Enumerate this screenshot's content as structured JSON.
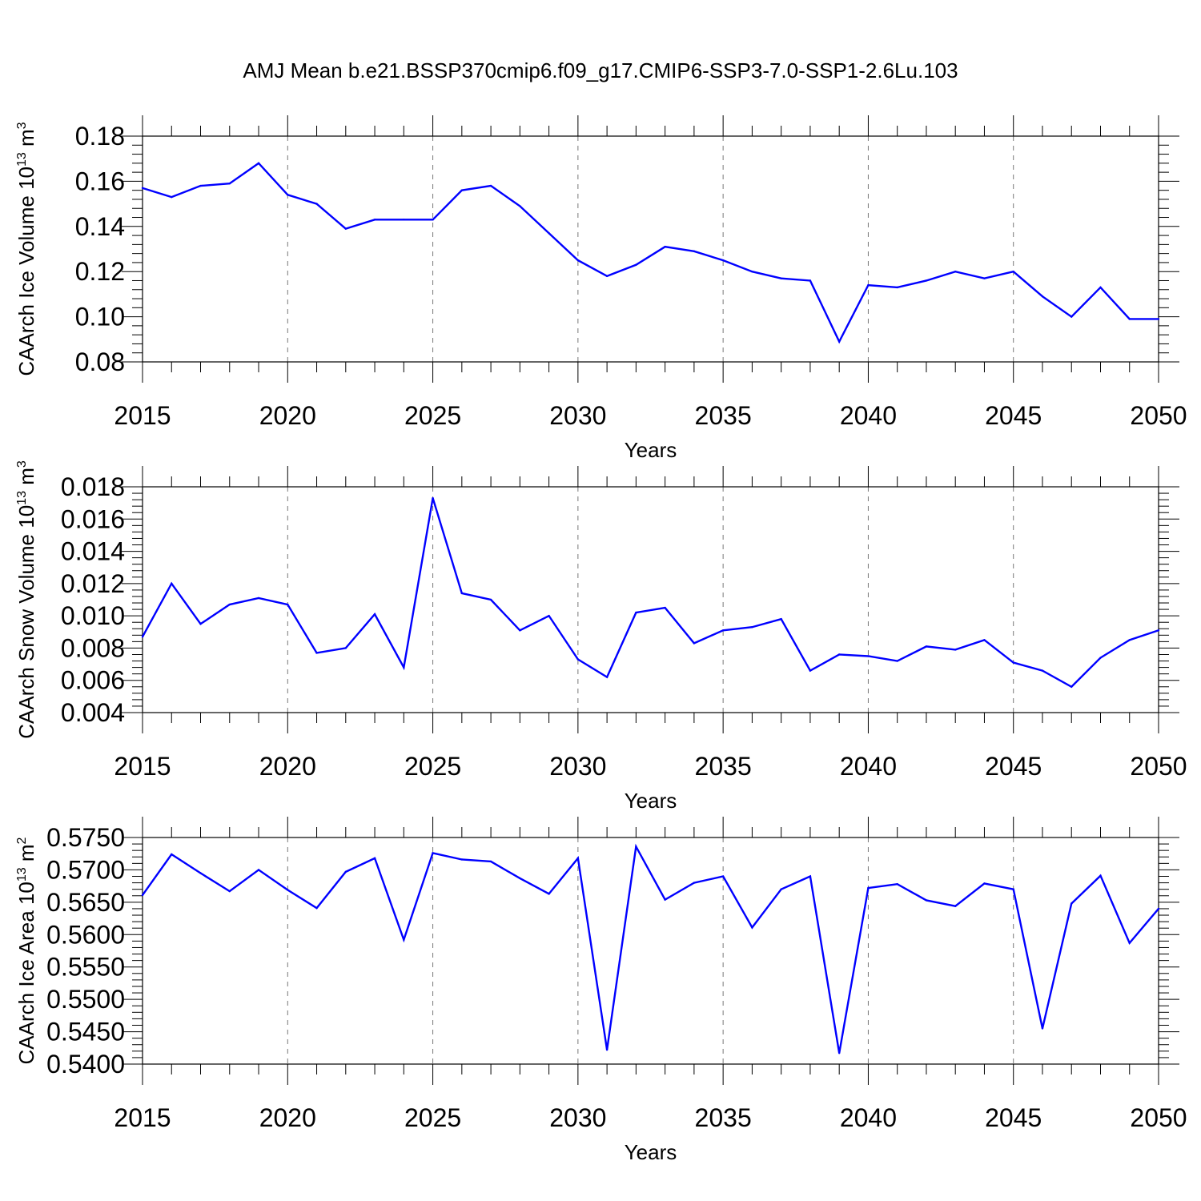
{
  "title": "AMJ Mean b.e21.BSSP370cmip6.f09_g17.CMIP6-SSP3-7.0-SSP1-2.6Lu.103",
  "line_color": "#0000ff",
  "chart_data": [
    {
      "type": "line",
      "ylabel": "CAArch Ice Volume 10",
      "ylabel_sup": "13",
      "ylabel_unit": "m",
      "ylabel_unit_sup": "3",
      "xlabel": "Years",
      "xlim": [
        2015,
        2050
      ],
      "ylim": [
        0.08,
        0.18
      ],
      "yticks": [
        "0.08",
        "0.10",
        "0.12",
        "0.14",
        "0.16",
        "0.18"
      ],
      "xticks": [
        "2015",
        "2020",
        "2025",
        "2030",
        "2035",
        "2040",
        "2045",
        "2050"
      ],
      "x": [
        2015,
        2016,
        2017,
        2018,
        2019,
        2020,
        2021,
        2022,
        2023,
        2024,
        2025,
        2026,
        2027,
        2028,
        2029,
        2030,
        2031,
        2032,
        2033,
        2034,
        2035,
        2036,
        2037,
        2038,
        2039,
        2040,
        2041,
        2042,
        2043,
        2044,
        2045,
        2046,
        2047,
        2048,
        2049,
        2050
      ],
      "series": [
        {
          "values": [
            0.157,
            0.153,
            0.158,
            0.159,
            0.168,
            0.154,
            0.15,
            0.139,
            0.143,
            0.143,
            0.143,
            0.156,
            0.158,
            0.149,
            0.137,
            0.125,
            0.118,
            0.123,
            0.131,
            0.129,
            0.125,
            0.12,
            0.117,
            0.116,
            0.089,
            0.114,
            0.113,
            0.116,
            0.12,
            0.117,
            0.12,
            0.109,
            0.1,
            0.113,
            0.099,
            0.099
          ]
        }
      ]
    },
    {
      "type": "line",
      "ylabel": "CAArch Snow Volume 10",
      "ylabel_sup": "13",
      "ylabel_unit": "m",
      "ylabel_unit_sup": "3",
      "xlabel": "Years",
      "xlim": [
        2015,
        2050
      ],
      "ylim": [
        0.004,
        0.018
      ],
      "yticks": [
        "0.004",
        "0.006",
        "0.008",
        "0.010",
        "0.012",
        "0.014",
        "0.016",
        "0.018"
      ],
      "xticks": [
        "2015",
        "2020",
        "2025",
        "2030",
        "2035",
        "2040",
        "2045",
        "2050"
      ],
      "x": [
        2015,
        2016,
        2017,
        2018,
        2019,
        2020,
        2021,
        2022,
        2023,
        2024,
        2025,
        2026,
        2027,
        2028,
        2029,
        2030,
        2031,
        2032,
        2033,
        2034,
        2035,
        2036,
        2037,
        2038,
        2039,
        2040,
        2041,
        2042,
        2043,
        2044,
        2045,
        2046,
        2047,
        2048,
        2049,
        2050
      ],
      "series": [
        {
          "values": [
            0.0087,
            0.012,
            0.0095,
            0.0107,
            0.0111,
            0.0107,
            0.0077,
            0.008,
            0.0101,
            0.0068,
            0.0173,
            0.0114,
            0.011,
            0.0091,
            0.01,
            0.0073,
            0.0062,
            0.0102,
            0.0105,
            0.0083,
            0.0091,
            0.0093,
            0.0098,
            0.0066,
            0.0076,
            0.0075,
            0.0072,
            0.0081,
            0.0079,
            0.0085,
            0.0071,
            0.0066,
            0.0056,
            0.0074,
            0.0085,
            0.0091
          ]
        }
      ]
    },
    {
      "type": "line",
      "ylabel": "CAArch Ice Area 10",
      "ylabel_sup": "13",
      "ylabel_unit": "m",
      "ylabel_unit_sup": "2",
      "xlabel": "Years",
      "xlim": [
        2015,
        2050
      ],
      "ylim": [
        0.54,
        0.575
      ],
      "yticks": [
        "0.5400",
        "0.5450",
        "0.5500",
        "0.5550",
        "0.5600",
        "0.5650",
        "0.5700",
        "0.5750"
      ],
      "xticks": [
        "2015",
        "2020",
        "2025",
        "2030",
        "2035",
        "2040",
        "2045",
        "2050"
      ],
      "x": [
        2015,
        2016,
        2017,
        2018,
        2019,
        2020,
        2021,
        2022,
        2023,
        2024,
        2025,
        2026,
        2027,
        2028,
        2029,
        2030,
        2031,
        2032,
        2033,
        2034,
        2035,
        2036,
        2037,
        2038,
        2039,
        2040,
        2041,
        2042,
        2043,
        2044,
        2045,
        2046,
        2047,
        2048,
        2049,
        2050
      ],
      "series": [
        {
          "values": [
            0.5661,
            0.5724,
            0.5695,
            0.5667,
            0.57,
            0.5669,
            0.5641,
            0.5697,
            0.5718,
            0.5592,
            0.5726,
            0.5716,
            0.5713,
            0.5687,
            0.5663,
            0.5718,
            0.5422,
            0.5736,
            0.5654,
            0.568,
            0.569,
            0.5611,
            0.567,
            0.569,
            0.5417,
            0.5672,
            0.5678,
            0.5653,
            0.5644,
            0.5679,
            0.567,
            0.5455,
            0.5648,
            0.5691,
            0.5587,
            0.564
          ]
        }
      ]
    }
  ]
}
